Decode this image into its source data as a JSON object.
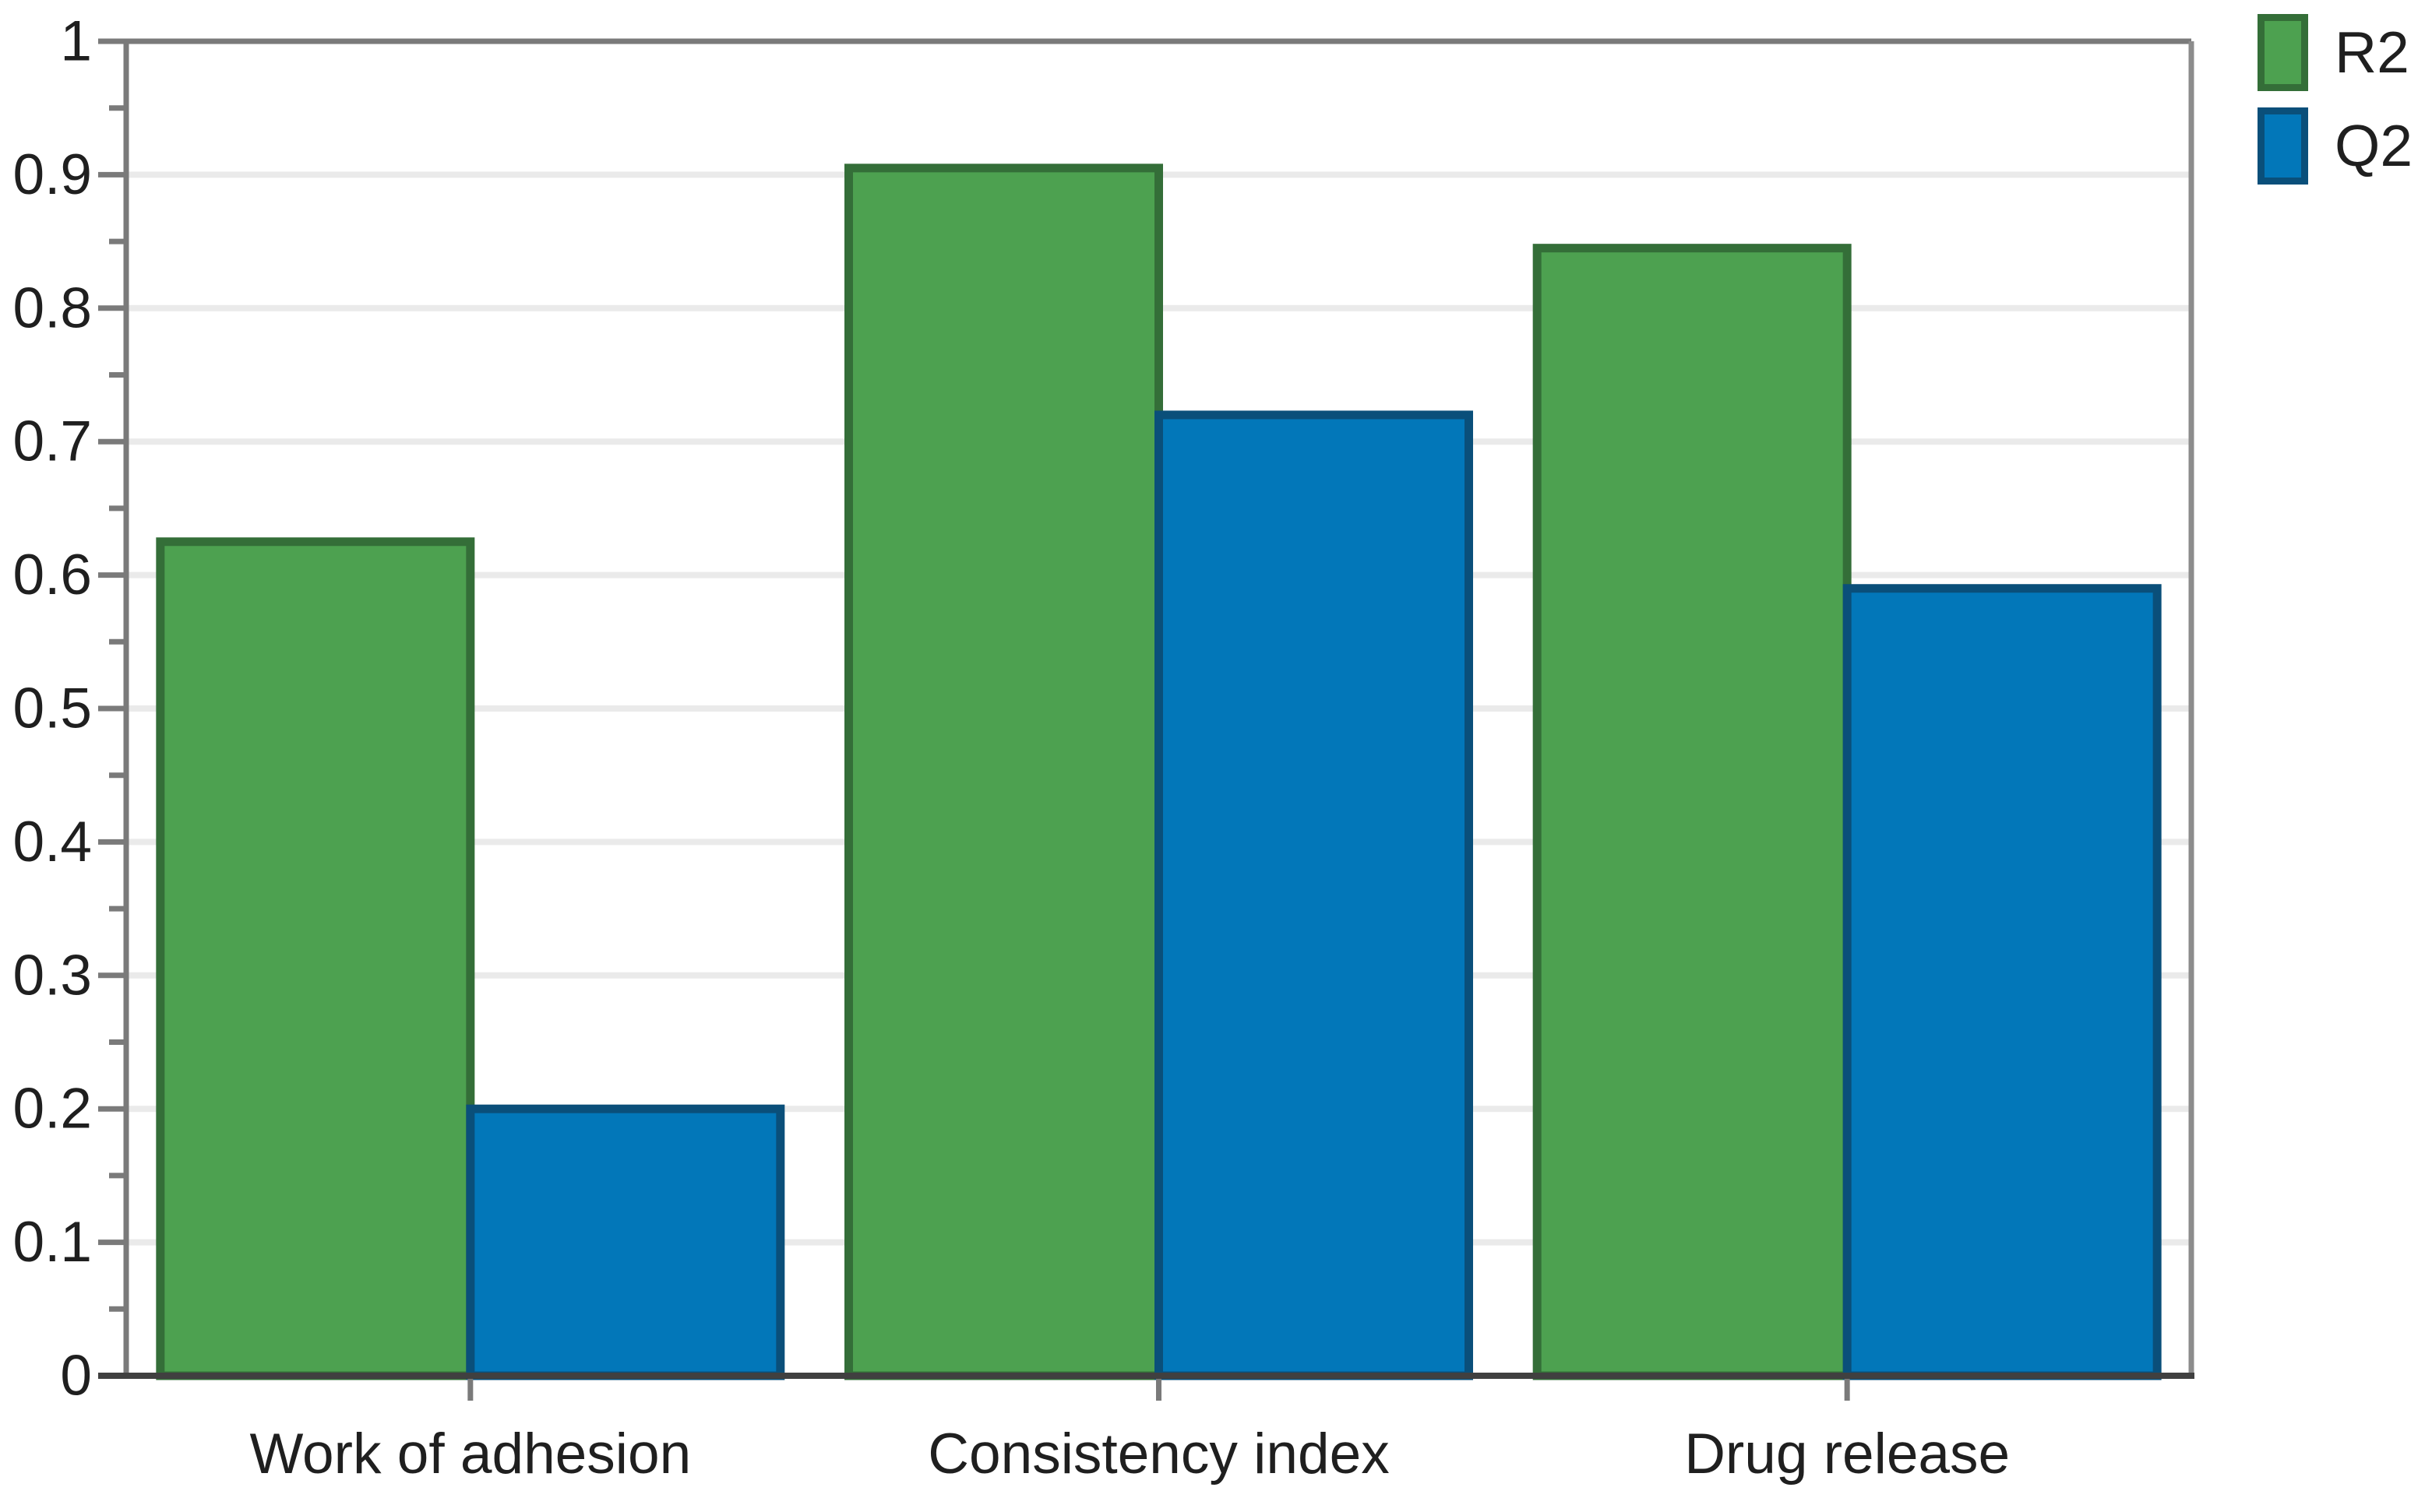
{
  "chart_data": {
    "type": "bar",
    "title": "",
    "xlabel": "",
    "ylabel": "",
    "categories": [
      "Work of adhesion",
      "Consistency index",
      "Drug release"
    ],
    "series": [
      {
        "name": "R2",
        "values": [
          0.625,
          0.905,
          0.845
        ],
        "fill": "#4da150",
        "stroke": "#346e38"
      },
      {
        "name": "Q2",
        "values": [
          0.2,
          0.72,
          0.59
        ],
        "fill": "#0277b9",
        "stroke": "#0a4f7a"
      }
    ],
    "ylim": [
      0,
      1
    ],
    "y_major_step": 0.1,
    "y_minor_step": 0.05,
    "y_tick_labels": [
      "0",
      "0.1",
      "0.2",
      "0.3",
      "0.4",
      "0.5",
      "0.6",
      "0.7",
      "0.8",
      "0.9",
      "1"
    ],
    "grid": true,
    "legend_position": "top-right"
  },
  "appearance": {
    "background": "#ffffff",
    "grid_color": "#eaeaea",
    "axis_left_color": "#7a7a7a",
    "axis_top_color": "#7a7a7a",
    "axis_right_color": "#8c8c8c",
    "axis_bottom_color": "#404040",
    "tick_color": "#7a7a7a",
    "text_color": "#1f1f1f"
  }
}
